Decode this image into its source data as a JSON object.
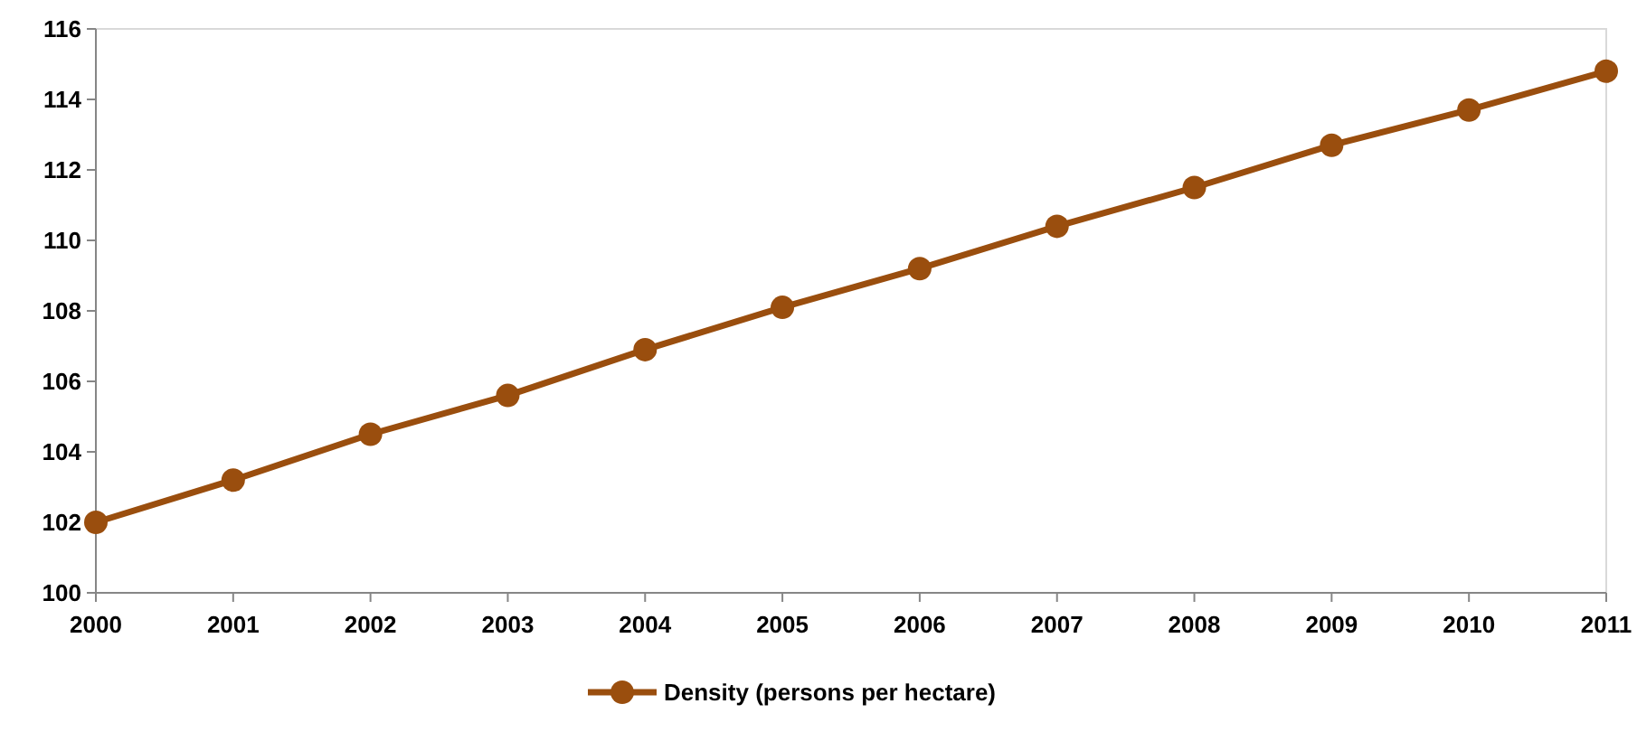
{
  "chart_data": {
    "type": "line",
    "x": [
      2000,
      2001,
      2002,
      2003,
      2004,
      2005,
      2006,
      2007,
      2008,
      2009,
      2010,
      2011
    ],
    "series": [
      {
        "name": "Density (persons per hectare)",
        "color": "#9a4e0e",
        "values": [
          102.0,
          103.2,
          104.5,
          105.6,
          106.9,
          108.1,
          109.2,
          110.4,
          111.5,
          112.7,
          113.7,
          114.8
        ]
      }
    ],
    "xlim": [
      2000,
      2011
    ],
    "xticks": [
      2000,
      2001,
      2002,
      2003,
      2004,
      2005,
      2006,
      2007,
      2008,
      2009,
      2010,
      2011
    ],
    "ylim": [
      100,
      116
    ],
    "yticks": [
      100,
      102,
      104,
      106,
      108,
      110,
      112,
      114,
      116
    ],
    "grid": false,
    "legend": "bottom",
    "marker": "circle",
    "line_style": "solid"
  }
}
